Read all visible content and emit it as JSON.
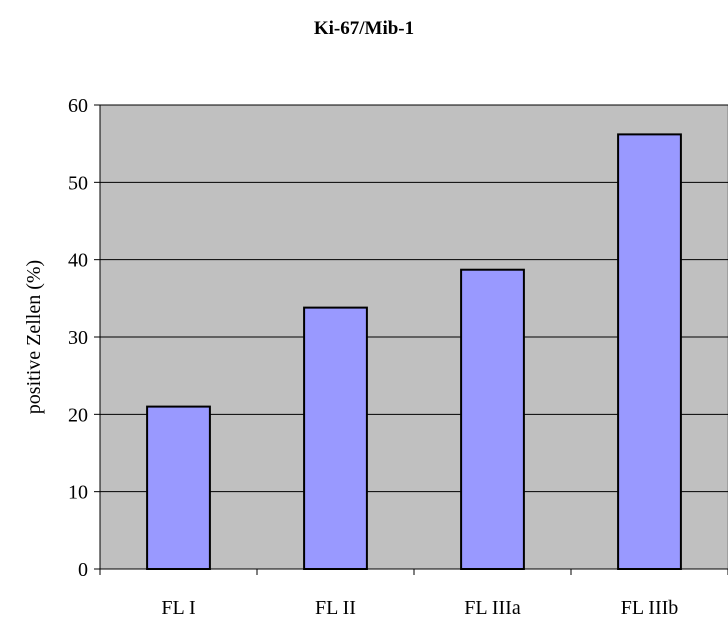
{
  "chart_data": {
    "type": "bar",
    "title": "Ki-67/Mib-1",
    "xlabel": "",
    "ylabel": "positive Zellen (%)",
    "categories": [
      "FL I",
      "FL II",
      "FL IIIa",
      "FL IIIb"
    ],
    "values": [
      21,
      33.8,
      38.7,
      56.2
    ],
    "ylim": [
      0,
      60
    ],
    "yticks": [
      0,
      10,
      20,
      30,
      40,
      50,
      60
    ],
    "grid": true,
    "legend": "none",
    "colors": {
      "plot_background": "#c0c0c0",
      "bar_fill": "#9999ff",
      "bar_stroke": "#000000",
      "gridline": "#000000"
    }
  }
}
